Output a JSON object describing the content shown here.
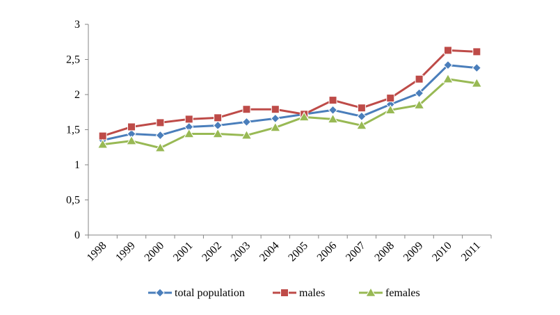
{
  "chart_data": {
    "type": "line",
    "title": "",
    "xlabel": "",
    "ylabel": "",
    "categories": [
      "1998",
      "1999",
      "2000",
      "2001",
      "2002",
      "2003",
      "2004",
      "2005",
      "2006",
      "2007",
      "2008",
      "2009",
      "2010",
      "2011"
    ],
    "ylim": [
      0,
      3
    ],
    "y_ticks": [
      "0",
      "0,5",
      "1",
      "1,5",
      "2",
      "2,5",
      "3"
    ],
    "y_tick_values": [
      0,
      0.5,
      1,
      1.5,
      2,
      2.5,
      3
    ],
    "grid": false,
    "legend_position": "bottom",
    "series": [
      {
        "name": "total population",
        "color": "#4a7ebb",
        "marker": "diamond",
        "values": [
          1.35,
          1.44,
          1.42,
          1.54,
          1.56,
          1.61,
          1.66,
          1.72,
          1.78,
          1.69,
          1.86,
          2.02,
          2.42,
          2.38
        ]
      },
      {
        "name": "males",
        "color": "#be4b48",
        "marker": "square",
        "values": [
          1.41,
          1.54,
          1.6,
          1.65,
          1.67,
          1.79,
          1.79,
          1.72,
          1.92,
          1.81,
          1.95,
          2.22,
          2.63,
          2.61
        ]
      },
      {
        "name": "females",
        "color": "#98b954",
        "marker": "triangle",
        "values": [
          1.29,
          1.34,
          1.24,
          1.44,
          1.44,
          1.42,
          1.53,
          1.68,
          1.65,
          1.56,
          1.78,
          1.85,
          2.22,
          2.16
        ]
      }
    ]
  }
}
